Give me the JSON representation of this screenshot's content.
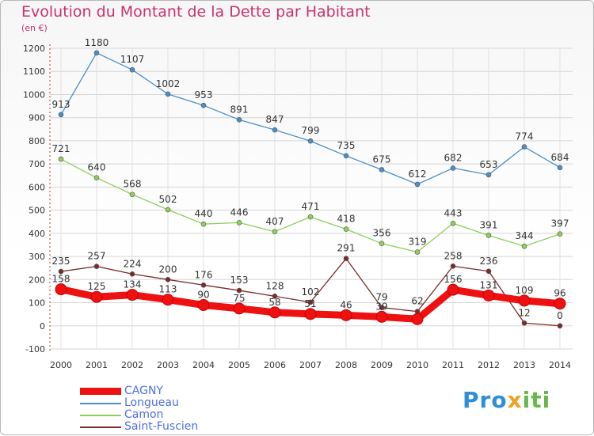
{
  "title": "Evolution du Montant de la Dette par Habitant",
  "unit": "(en €)",
  "logo": {
    "part1": "Pro",
    "part2": "x",
    "part3": "iti",
    "colors": [
      "#2e8fd8",
      "#f0a020",
      "#66b848"
    ]
  },
  "chart_data": {
    "type": "line",
    "title": "Evolution du Montant de la Dette par Habitant",
    "ylabel": "(en €)",
    "ylim": [
      -100,
      1200
    ],
    "y_ticks": [
      -100,
      0,
      100,
      200,
      300,
      400,
      500,
      600,
      700,
      800,
      900,
      1000,
      1100,
      1200
    ],
    "x": [
      "2000",
      "2001",
      "2002",
      "2003",
      "2004",
      "2005",
      "2006",
      "2007",
      "2008",
      "2009",
      "2010",
      "2011",
      "2012",
      "2013",
      "2014"
    ],
    "grid": true,
    "legend_placement": "bottom-left",
    "series": [
      {
        "name": "CAGNY",
        "color": "#ee1111",
        "values": [
          158,
          125,
          134,
          113,
          90,
          75,
          58,
          51,
          46,
          39,
          29,
          156,
          131,
          109,
          96
        ],
        "labels": [
          "158",
          "125",
          "134",
          "113",
          "90",
          "75",
          "58",
          "51",
          "46",
          "39",
          "",
          "156",
          "131",
          "109",
          "96"
        ]
      },
      {
        "name": "Longueau",
        "color": "#4a8fc8",
        "values": [
          913,
          1180,
          1107,
          1002,
          953,
          891,
          847,
          799,
          735,
          675,
          612,
          682,
          653,
          774,
          684
        ],
        "labels": [
          "913",
          "1180",
          "1107",
          "1002",
          "953",
          "891",
          "847",
          "799",
          "735",
          "675",
          "612",
          "682",
          "653",
          "774",
          "684"
        ]
      },
      {
        "name": "Camon",
        "color": "#8fcf5a",
        "values": [
          721,
          640,
          568,
          502,
          440,
          446,
          407,
          471,
          418,
          356,
          319,
          443,
          391,
          344,
          397
        ],
        "labels": [
          "721",
          "640",
          "568",
          "502",
          "440",
          "446",
          "407",
          "471",
          "418",
          "356",
          "319",
          "443",
          "391",
          "344",
          "397"
        ]
      },
      {
        "name": "Saint-Fuscien",
        "color": "#7a2b2b",
        "values": [
          235,
          257,
          224,
          200,
          176,
          153,
          128,
          102,
          291,
          79,
          62,
          258,
          236,
          12,
          0
        ],
        "labels": [
          "235",
          "257",
          "224",
          "200",
          "176",
          "153",
          "128",
          "102",
          "291",
          "79",
          "62",
          "258",
          "236",
          "12",
          "0"
        ]
      }
    ]
  }
}
